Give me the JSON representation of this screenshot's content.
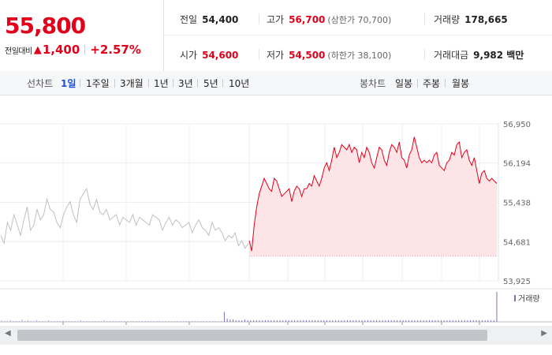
{
  "quote": {
    "price": "55,800",
    "change_label": "전일대비",
    "change_icon": "up-triangle-icon",
    "change_amount": "1,400",
    "change_pct": "+2.57%",
    "stats": {
      "prev_close_label": "전일",
      "prev_close": "54,400",
      "high_label": "고가",
      "high": "56,700",
      "upper_limit": "(상한가 70,700)",
      "volume_label": "거래량",
      "volume": "178,665",
      "open_label": "시가",
      "open": "54,600",
      "low_label": "저가",
      "low": "54,500",
      "lower_limit": "(하한가 38,100)",
      "value_label": "거래대금",
      "value": "9,982 백만"
    }
  },
  "tabs": {
    "line_label": "선차트",
    "line_periods": [
      "1일",
      "1주일",
      "3개월",
      "1년",
      "3년",
      "5년",
      "10년"
    ],
    "active_period": "1일",
    "candle_label": "봉차트",
    "candle_periods": [
      "일봉",
      "주봉",
      "월봉"
    ]
  },
  "colors": {
    "up": "#e3001b",
    "prev_day_line": "#c0c0c0",
    "area_fill": "#fde4e6"
  },
  "chart_data": {
    "type": "line",
    "y_ticks": [
      56950,
      56194,
      55438,
      54681,
      53925
    ],
    "y_tick_labels": [
      "56,950",
      "56,194",
      "55,438",
      "54,681",
      "53,925"
    ],
    "ylim": [
      53925,
      56950
    ],
    "reference_line": 54400,
    "volume_legend": "거래량",
    "grid": true,
    "series": [
      {
        "values": [
          54800,
          54650,
          55050,
          54900,
          55200,
          55000,
          54800,
          55100,
          55350,
          54900,
          55000,
          55300,
          55100,
          55200,
          55500,
          55300,
          55250,
          55050,
          54950,
          55200,
          55350,
          55450,
          55200,
          55050,
          55500,
          55600,
          55700,
          55400,
          55300,
          55500,
          55250,
          55200,
          55300,
          55100,
          55150,
          55200,
          55000,
          55150,
          55100,
          55050,
          55200,
          55000,
          55150,
          55100,
          55050,
          55000,
          55200,
          55150,
          55100,
          54900,
          55050,
          55150,
          55000,
          55100,
          55050,
          54950,
          55000,
          55050,
          54850,
          55000,
          55100,
          54950,
          54900,
          54800,
          55050,
          54900,
          54950,
          54850,
          54700,
          54800,
          54750,
          54850,
          54600,
          54700,
          54550,
          54650
        ]
      },
      {
        "values": [
          54700,
          54500,
          55000,
          55350,
          55600,
          55750,
          55900,
          55800,
          55700,
          55650,
          55900,
          55850,
          55700,
          55550,
          55600,
          55650,
          55700,
          55450,
          55650,
          55750,
          55700,
          55550,
          55700,
          55700,
          55800,
          55750,
          55950,
          55850,
          55750,
          55900,
          56100,
          56200,
          56050,
          56250,
          56500,
          56300,
          56400,
          56550,
          56500,
          56450,
          56550,
          56400,
          56500,
          56450,
          56200,
          56400,
          56300,
          56500,
          56400,
          56200,
          56100,
          56300,
          56500,
          56450,
          56250,
          56150,
          56400,
          56550,
          56500,
          56400,
          56600,
          56300,
          56250,
          56100,
          56350,
          56450,
          56700,
          56500,
          56300,
          56200,
          56250,
          56200,
          56250,
          56200,
          56350,
          56400,
          56150,
          56100,
          56050,
          56200,
          56250,
          56400,
          56350,
          56550,
          56600,
          56300,
          56400,
          56450,
          56250,
          56150,
          56300,
          56050,
          55800,
          56000,
          56050,
          55900,
          55850,
          55900,
          55850,
          55800
        ]
      }
    ],
    "volume": [
      2,
      1,
      1,
      2,
      1,
      1,
      1,
      3,
      1,
      2,
      1,
      1,
      2,
      1,
      1,
      1,
      2,
      1,
      1,
      1,
      1,
      2,
      1,
      1,
      1,
      1,
      1,
      2,
      1,
      1,
      1,
      1,
      1,
      1,
      1,
      2,
      1,
      1,
      1,
      1,
      1,
      1,
      1,
      1,
      1,
      1,
      1,
      1,
      1,
      1,
      1,
      1,
      1,
      1,
      1,
      1,
      1,
      1,
      1,
      1,
      1,
      1,
      1,
      1,
      1,
      1,
      1,
      1,
      1,
      1,
      1,
      1,
      1,
      1,
      1,
      1,
      12,
      4,
      3,
      3,
      2,
      2,
      2,
      3,
      2,
      2,
      2,
      2,
      2,
      2,
      2,
      2,
      2,
      2,
      2,
      2,
      2,
      2,
      2,
      2,
      2,
      2,
      2,
      2,
      2,
      2,
      2,
      2,
      2,
      2,
      2,
      2,
      2,
      2,
      2,
      2,
      2,
      2,
      2,
      2,
      2,
      2,
      2,
      2,
      2,
      2,
      2,
      2,
      2,
      2,
      2,
      2,
      2,
      2,
      2,
      2,
      2,
      2,
      2,
      2,
      2,
      2,
      2,
      2,
      2,
      2,
      2,
      2,
      2,
      2,
      2,
      2,
      2,
      2,
      2,
      2,
      2,
      2,
      2,
      2,
      2,
      2,
      2,
      2,
      2,
      2,
      2,
      2,
      2,
      36
    ]
  }
}
